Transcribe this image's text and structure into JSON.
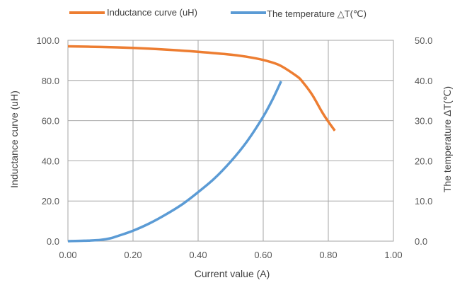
{
  "chart_data": {
    "type": "line",
    "title": "",
    "xlabel": "Current value (A)",
    "ylabel": "Inductance curve (uH)",
    "y2label": "The temperature ΔT(℃)",
    "xlim": [
      0.0,
      1.0
    ],
    "ylim": [
      0.0,
      100.0
    ],
    "y2lim": [
      0.0,
      50.0
    ],
    "x_ticks": [
      "0.00",
      "0.20",
      "0.40",
      "0.60",
      "0.80",
      "1.00"
    ],
    "y_ticks": [
      "0.0",
      "20.0",
      "40.0",
      "60.0",
      "80.0",
      "100.0"
    ],
    "y2_ticks": [
      "0.0",
      "10.0",
      "20.0",
      "30.0",
      "40.0",
      "50.0"
    ],
    "grid": true,
    "legend_position": "top",
    "series": [
      {
        "name": "Inductance curve (uH)",
        "axis": "left",
        "color": "#ED7D31",
        "x": [
          0.0,
          0.1,
          0.2,
          0.3,
          0.4,
          0.5,
          0.55,
          0.6,
          0.65,
          0.7,
          0.72,
          0.75,
          0.78,
          0.8,
          0.82
        ],
        "y": [
          97.0,
          96.7,
          96.2,
          95.4,
          94.3,
          92.9,
          91.8,
          90.2,
          87.6,
          82.5,
          79.5,
          73.0,
          64.5,
          59.5,
          55.0
        ]
      },
      {
        "name": "The temperature △T(℃)",
        "axis": "right",
        "color": "#5B9BD5",
        "x": [
          0.0,
          0.05,
          0.1,
          0.13,
          0.15,
          0.2,
          0.25,
          0.3,
          0.35,
          0.4,
          0.45,
          0.5,
          0.55,
          0.6,
          0.63,
          0.655
        ],
        "y": [
          0.0,
          0.1,
          0.3,
          0.7,
          1.2,
          2.6,
          4.4,
          6.6,
          9.1,
          12.2,
          15.6,
          19.8,
          24.8,
          31.0,
          35.5,
          39.8
        ]
      }
    ]
  }
}
